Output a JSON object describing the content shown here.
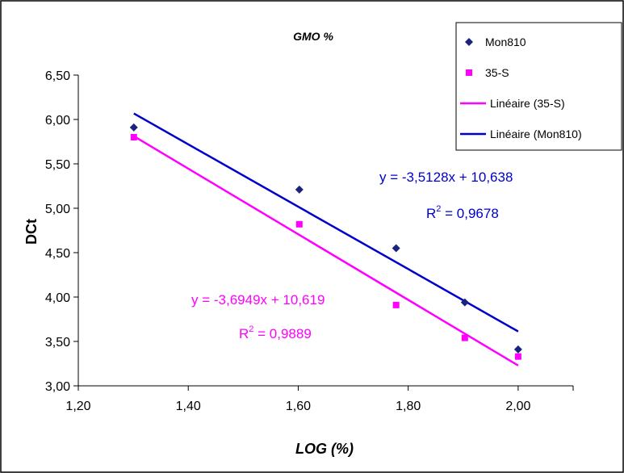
{
  "chart_data": {
    "type": "scatter",
    "title": "GMO %",
    "xlabel": "LOG (%)",
    "ylabel": "DCt",
    "xlim": [
      1.2,
      2.1
    ],
    "ylim": [
      3.0,
      6.5
    ],
    "x_ticks": [
      "1,20",
      "1,40",
      "1,60",
      "1,80",
      "2,00"
    ],
    "y_ticks": [
      "3,00",
      "3,50",
      "4,00",
      "4,50",
      "5,00",
      "5,50",
      "6,00",
      "6,50"
    ],
    "grid": false,
    "legend_position": "top-right",
    "series": [
      {
        "name": "Mon810",
        "marker": "diamond",
        "color": "#1a237e",
        "x": [
          1.301,
          1.602,
          1.778,
          1.903,
          2.0
        ],
        "y": [
          5.91,
          5.21,
          4.55,
          3.94,
          3.41
        ]
      },
      {
        "name": "35-S",
        "marker": "square",
        "color": "#ff00ff",
        "x": [
          1.301,
          1.602,
          1.778,
          1.903,
          2.0
        ],
        "y": [
          5.8,
          4.82,
          3.91,
          3.54,
          3.33
        ]
      }
    ],
    "trendlines": [
      {
        "name": "Linéaire (35-S)",
        "color": "#ff00ff",
        "slope": -3.6949,
        "intercept": 10.619,
        "x_range": [
          1.301,
          2.0
        ],
        "equation": "y = -3,6949x + 10,619",
        "r2_label": "R",
        "r2_value": " = 0,9889"
      },
      {
        "name": "Linéaire (Mon810)",
        "color": "#0000cc",
        "slope": -3.5128,
        "intercept": 10.638,
        "x_range": [
          1.301,
          2.0
        ],
        "equation": "y = -3,5128x + 10,638",
        "r2_label": "R",
        "r2_value": " = 0,9678"
      }
    ],
    "legend": [
      "Mon810",
      "35-S",
      "Linéaire (35-S)",
      "Linéaire (Mon810)"
    ]
  }
}
